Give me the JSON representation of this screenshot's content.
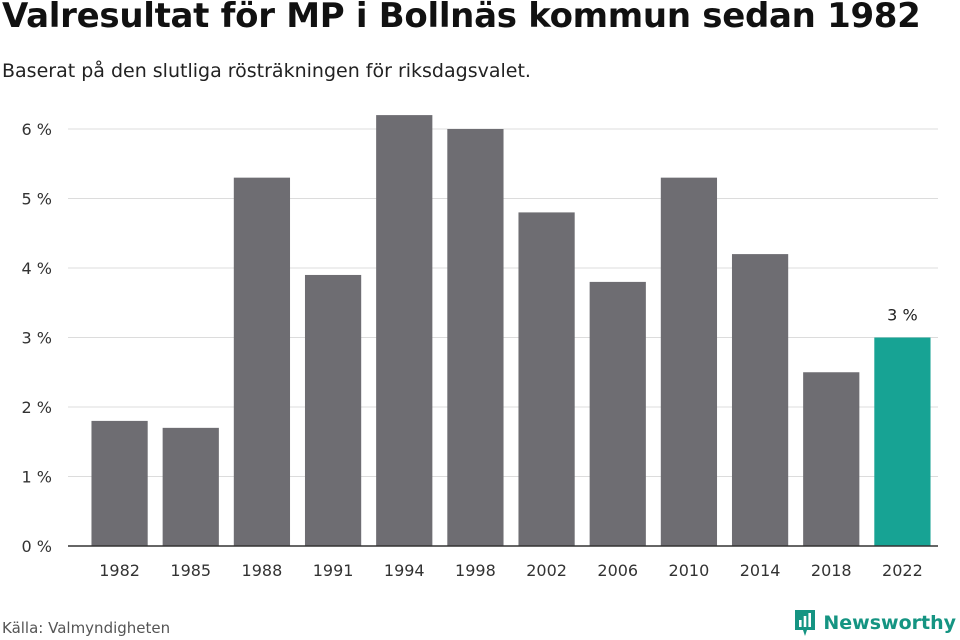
{
  "chart_data": {
    "type": "bar",
    "title": "Valresultat för MP i Bollnäs kommun sedan 1982",
    "subtitle": "Baserat på den slutliga rösträkningen för riksdagsvalet.",
    "categories": [
      "1982",
      "1985",
      "1988",
      "1991",
      "1994",
      "1998",
      "2002",
      "2006",
      "2010",
      "2014",
      "2018",
      "2022"
    ],
    "values": [
      1.8,
      1.7,
      5.3,
      3.9,
      6.2,
      6.0,
      4.8,
      3.8,
      5.3,
      4.2,
      2.5,
      3.0
    ],
    "value_unit": "%",
    "ylim": [
      0,
      6
    ],
    "y_ticks": [
      {
        "value": 0,
        "label": "0 %"
      },
      {
        "value": 1,
        "label": "1 %"
      },
      {
        "value": 2,
        "label": "2 %"
      },
      {
        "value": 3,
        "label": "3 %"
      },
      {
        "value": 4,
        "label": "4 %"
      },
      {
        "value": 5,
        "label": "5 %"
      },
      {
        "value": 6,
        "label": "6 %"
      }
    ],
    "grid": true,
    "highlight": {
      "category": "2022",
      "label": "3 %"
    },
    "colors": {
      "bar": "#6e6d72",
      "highlight": "#17a394",
      "grid": "#dcdcdc",
      "axis": "#333333"
    }
  },
  "footer": {
    "source": "Källa: Valmyndigheten",
    "brand": "Newsworthy"
  }
}
